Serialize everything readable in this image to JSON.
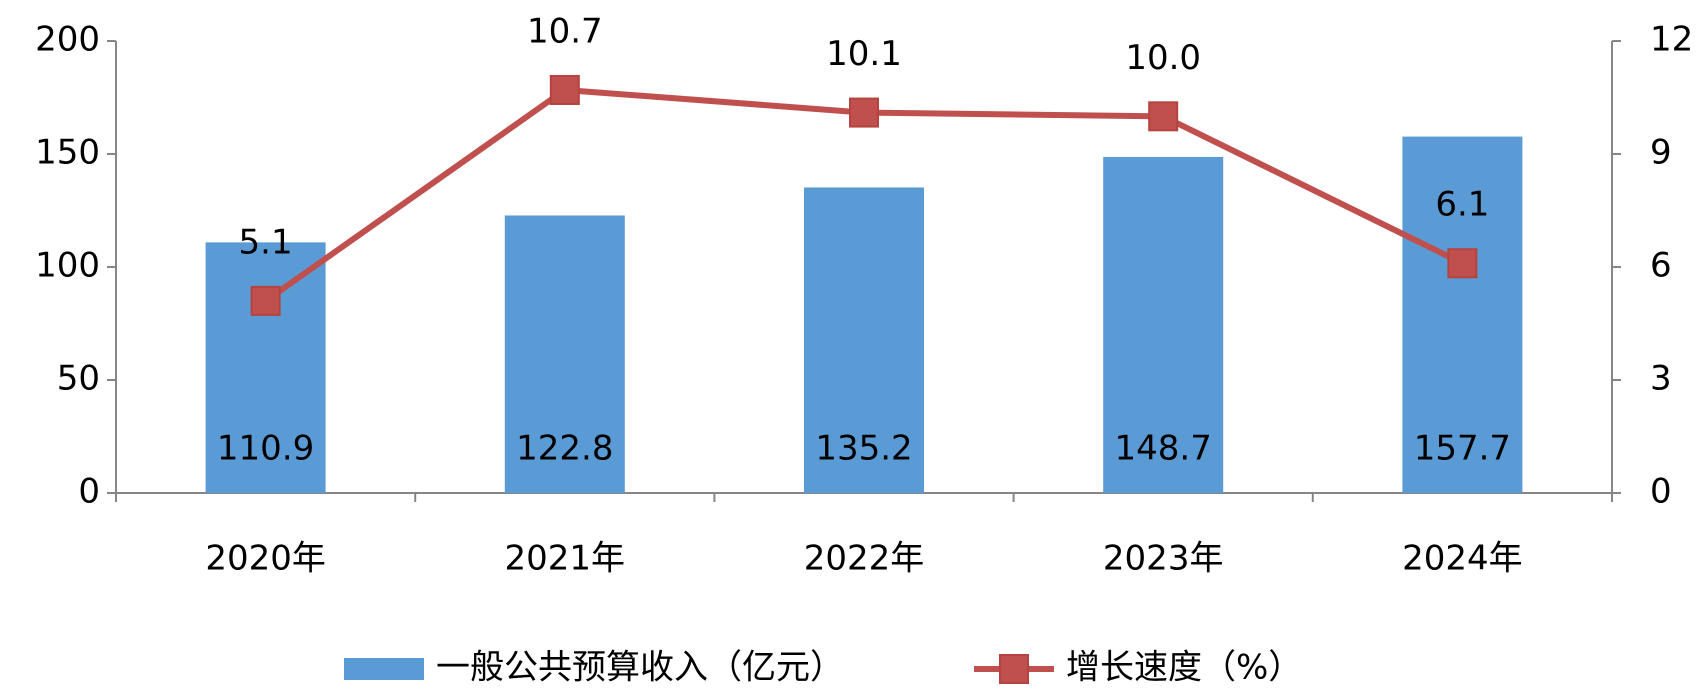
{
  "chart_data": {
    "type": "combo",
    "categories": [
      "2020年",
      "2021年",
      "2022年",
      "2023年",
      "2024年"
    ],
    "series": [
      {
        "name": "一般公共预算收入（亿元）",
        "type": "bar",
        "color": "#5b9bd5",
        "values": [
          110.9,
          122.8,
          135.2,
          148.7,
          157.7
        ]
      },
      {
        "name": "增长速度（%）",
        "type": "line",
        "axis": "y2",
        "color": "#c0504d",
        "values": [
          5.1,
          10.7,
          10.1,
          10.0,
          6.1
        ],
        "value_labels": [
          "5.1",
          "10.7",
          "10.1",
          "10.0",
          "6.1"
        ]
      }
    ],
    "ylim": [
      0,
      200
    ],
    "yticks": [
      0,
      50,
      100,
      150,
      200
    ],
    "y2lim": [
      0,
      12
    ],
    "y2ticks": [
      0,
      3,
      6,
      9,
      12
    ],
    "grid": false,
    "legend": "bottom"
  }
}
